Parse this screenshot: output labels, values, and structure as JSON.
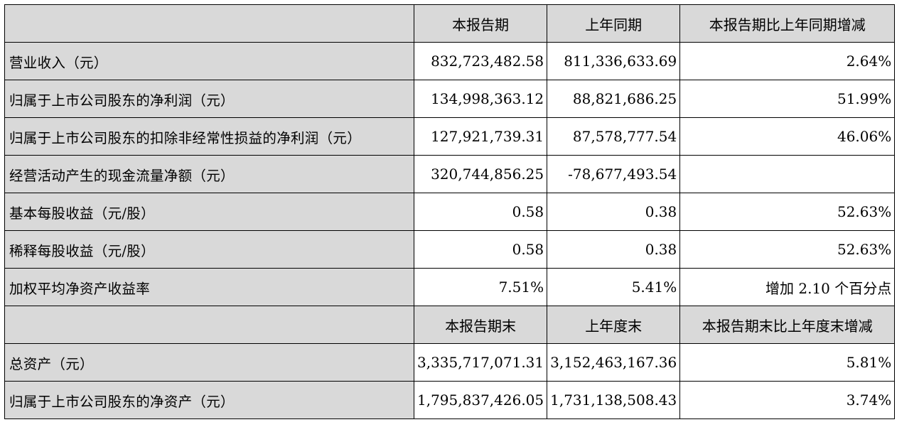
{
  "table": {
    "header1": [
      "",
      "本报告期",
      "上年同期",
      "本报告期比上年同期增减"
    ],
    "rows1": [
      [
        "营业收入（元）",
        "832,723,482.58",
        "811,336,633.69",
        "2.64%"
      ],
      [
        "归属于上市公司股东的净利润（元）",
        "134,998,363.12",
        "88,821,686.25",
        "51.99%"
      ],
      [
        "归属于上市公司股东的扣除非经常性损益的净利润（元）",
        "127,921,739.31",
        "87,578,777.54",
        "46.06%"
      ],
      [
        "经营活动产生的现金流量净额（元）",
        "320,744,856.25",
        "-78,677,493.54",
        ""
      ],
      [
        "基本每股收益（元/股）",
        "0.58",
        "0.38",
        "52.63%"
      ],
      [
        "稀释每股收益（元/股）",
        "0.58",
        "0.38",
        "52.63%"
      ],
      [
        "加权平均净资产收益率",
        "7.51%",
        "5.41%",
        "增加 2.10 个百分点"
      ]
    ],
    "header2": [
      "",
      "本报告期末",
      "上年度末",
      "本报告期末比上年度末增减"
    ],
    "rows2": [
      [
        "总资产（元）",
        "3,335,717,071.31",
        "3,152,463,167.36",
        "5.81%"
      ],
      [
        "归属于上市公司股东的净资产（元）",
        "1,795,837,426.05",
        "1,731,138,508.43",
        "3.74%"
      ]
    ]
  },
  "colors": {
    "shade": "#d9d9d9",
    "border": "#000000"
  }
}
